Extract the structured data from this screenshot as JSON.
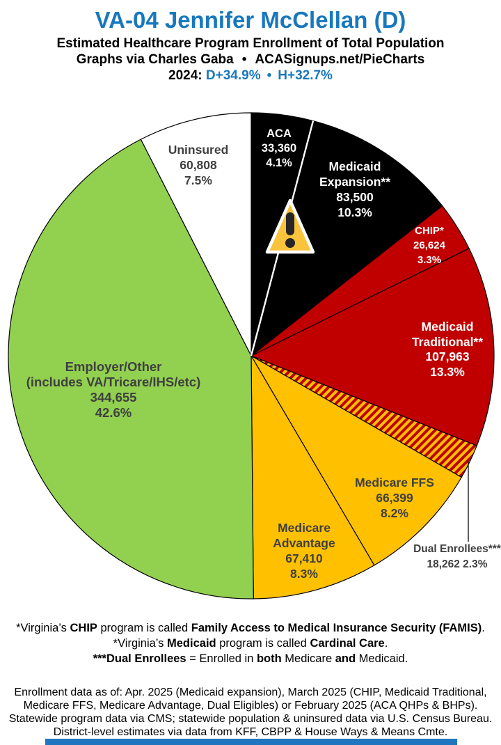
{
  "header": {
    "title": "VA-04 Jennifer McClellan (D)",
    "subtitle": "Estimated Healthcare Program Enrollment of Total Population",
    "credit": "Graphs via Charles Gaba",
    "dot": "•",
    "site": "ACASignups.net/PieCharts",
    "year_label": "2024:",
    "margin_d": "D+34.9%",
    "margin_h": "H+32.7%"
  },
  "pie_labels": {
    "aca": {
      "name": "ACA",
      "value": "33,360",
      "pct": "4.1%"
    },
    "medicaid_expansion": {
      "name1": "Medicaid",
      "name2": "Expansion**",
      "value": "83,500",
      "pct": "10.3%"
    },
    "chip": {
      "name": "CHIP*",
      "value": "26,624",
      "pct": "3.3%"
    },
    "medicaid_traditional": {
      "name1": "Medicaid",
      "name2": "Traditional**",
      "value": "107,963",
      "pct": "13.3%"
    },
    "dual": {
      "name": "Dual Enrollees***",
      "value_pct": "18,262 2.3%"
    },
    "medicare_ffs": {
      "name": "Medicare FFS",
      "value": "66,399",
      "pct": "8.2%"
    },
    "medicare_advantage": {
      "name1": "Medicare",
      "name2": "Advantage",
      "value": "67,410",
      "pct": "8.3%"
    },
    "employer": {
      "name1": "Employer/Other",
      "name2": "(includes VA/Tricare/IHS/etc)",
      "value": "344,655",
      "pct": "42.6%"
    },
    "uninsured": {
      "name": "Uninsured",
      "value": "60,808",
      "pct": "7.5%"
    }
  },
  "footnotes": {
    "fn1": {
      "s1": "*Virginia’s ",
      "s2": "CHIP",
      "s3": " program is called ",
      "s4": "Family Access to Medical Insurance Security (FAMIS)",
      "s5": "."
    },
    "fn2": {
      "s1": "*Virginia’s ",
      "s2": "Medicaid",
      "s3": " program is called ",
      "s4": "Cardinal Care",
      "s5": "."
    },
    "fn3": {
      "s1": "***Dual Enrollees",
      "s2": " = Enrolled in ",
      "s3": "both",
      "s4": " Medicare ",
      "s5": "and",
      "s6": " Medicaid."
    },
    "src1": "Enrollment data as of: Apr. 2025 (Medicaid expansion), March 2025 (CHIP, Medicaid Traditional,",
    "src2": "Medicare FFS, Medicare Advantage, Dual Eligibles) or February 2025 (ACA QHPs & BHPs).",
    "src3": "Statewide program data via CMS; statewide population & uninsured data via U.S. Census Bureau.",
    "src4": "District-level estimates via data from KFF, CBPP & House Ways & Means Cmte."
  },
  "colors": {
    "accent_blue": "#1878BE",
    "slice_black": "#000000",
    "slice_red": "#C00000",
    "slice_gold": "#FFC000",
    "slice_green": "#92D050",
    "slice_white": "#FFFFFF",
    "label_gray": "#3F3F3F",
    "warning_amber": "#F9C33C",
    "bottom_bar": "#2076BE"
  },
  "chart_data": {
    "type": "pie",
    "title": "VA-04 Jennifer McClellan (D)",
    "subtitle": "Estimated Healthcare Program Enrollment of Total Population",
    "start_angle_deg": 0,
    "direction": "clockwise",
    "legend_position": "labels-on-slices",
    "slices": [
      {
        "id": "aca",
        "label": "ACA",
        "value": 33360,
        "pct": 4.1,
        "color": "#000000",
        "divider_after_white": true
      },
      {
        "id": "medicaid-expansion",
        "label": "Medicaid Expansion**",
        "value": 83500,
        "pct": 10.3,
        "color": "#000000"
      },
      {
        "id": "chip",
        "label": "CHIP*",
        "value": 26624,
        "pct": 3.3,
        "color": "#C00000"
      },
      {
        "id": "medicaid-traditional",
        "label": "Medicaid Traditional**",
        "value": 107963,
        "pct": 13.3,
        "color": "#C00000"
      },
      {
        "id": "dual-enrollees",
        "label": "Dual Enrollees***",
        "value": 18262,
        "pct": 2.3,
        "color": "pattern:dual-stripes"
      },
      {
        "id": "medicare-ffs",
        "label": "Medicare FFS",
        "value": 66399,
        "pct": 8.2,
        "color": "#FFC000"
      },
      {
        "id": "medicare-advantage",
        "label": "Medicare Advantage",
        "value": 67410,
        "pct": 8.3,
        "color": "#FFC000"
      },
      {
        "id": "employer-other",
        "label": "Employer/Other (includes VA/Tricare/IHS/etc)",
        "value": 344655,
        "pct": 42.6,
        "color": "#92D050"
      },
      {
        "id": "uninsured",
        "label": "Uninsured",
        "value": 60808,
        "pct": 7.5,
        "color": "#FFFFFF"
      }
    ]
  }
}
